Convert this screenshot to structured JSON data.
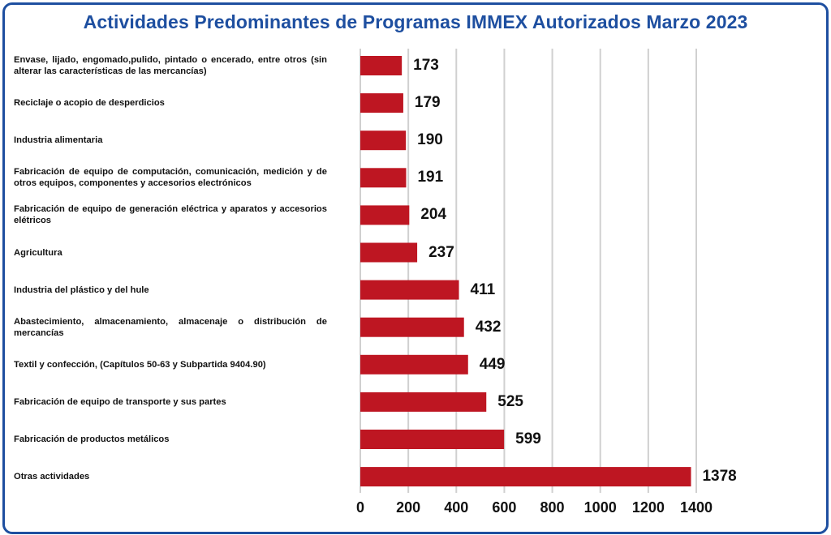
{
  "chart_data": {
    "type": "bar",
    "orientation": "horizontal",
    "title": "Actividades Predominantes de Programas IMMEX Autorizados Marzo 2023",
    "categories": [
      "Envase, lijado, engomado,pulido, pintado o encerado, entre otros (sin alterar las características de las mercancías)",
      "Reciclaje o acopio de desperdicios",
      "Industria alimentaria",
      "Fabricación de equipo de computación, comunicación, medición y de otros equipos, componentes y accesorios electrónicos",
      "Fabricación de equipo de generación eléctrica y aparatos y accesorios elétricos",
      "Agricultura",
      "Industria del plástico y del hule",
      "Abastecimiento, almacenamiento, almacenaje o distribución de mercancías",
      "Textil y confección, (Capítulos 50-63 y Subpartida 9404.90)",
      "Fabricación de equipo de transporte y sus partes",
      "Fabricación de productos metálicos",
      "Otras actividades"
    ],
    "values": [
      173,
      179,
      190,
      191,
      204,
      237,
      411,
      432,
      449,
      525,
      599,
      1378
    ],
    "data_labels": [
      "173",
      "179",
      "190",
      "191",
      "204",
      "237",
      "411",
      "432",
      "449",
      "525",
      "599",
      "1378"
    ],
    "xlim": [
      0,
      1400
    ],
    "x_ticks": [
      "0",
      "200",
      "400",
      "600",
      "800",
      "1000",
      "1200",
      "1400"
    ],
    "x_tick_values": [
      0,
      200,
      400,
      600,
      800,
      1000,
      1200,
      1400
    ],
    "grid": true,
    "legend": "none",
    "colors": {
      "bar": "#be1622",
      "title": "#1e4fa0",
      "border": "#1e4fa0",
      "grid": "#d0d0d0"
    }
  }
}
